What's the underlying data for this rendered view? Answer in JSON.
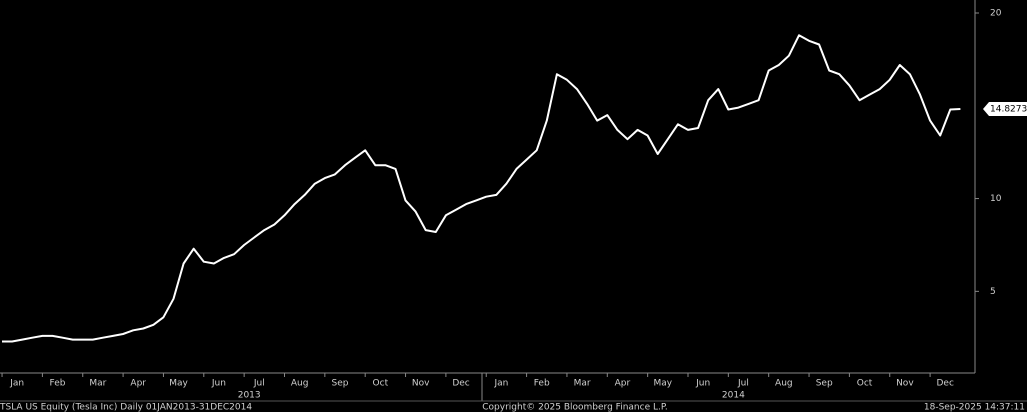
{
  "chart_data": {
    "type": "line",
    "categories": [
      null,
      "Jan",
      null,
      null,
      null,
      "Feb",
      null,
      null,
      null,
      "Mar",
      null,
      null,
      null,
      "Apr",
      null,
      null,
      null,
      "May",
      null,
      null,
      null,
      "Jun",
      null,
      null,
      null,
      "Jul",
      null,
      null,
      null,
      "Aug",
      null,
      null,
      null,
      "Sep",
      null,
      null,
      null,
      "Oct",
      null,
      null,
      null,
      "Nov",
      null,
      null,
      null,
      "Dec",
      null,
      null,
      null,
      "Jan",
      null,
      null,
      null,
      "Feb",
      null,
      null,
      null,
      "Mar",
      null,
      null,
      null,
      "Apr",
      null,
      null,
      null,
      "May",
      null,
      null,
      null,
      "Jun",
      null,
      null,
      null,
      "Jul",
      null,
      null,
      null,
      "Aug",
      null,
      null,
      null,
      "Sep",
      null,
      null,
      null,
      "Oct",
      null,
      null,
      null,
      "Nov",
      null,
      null,
      null,
      "Dec",
      null,
      null
    ],
    "years": [
      "2013",
      "2014"
    ],
    "series": [
      {
        "name": "TSLA US Equity",
        "color": "#ffffff",
        "values": [
          2.3,
          2.3,
          2.4,
          2.5,
          2.6,
          2.6,
          2.5,
          2.4,
          2.4,
          2.4,
          2.5,
          2.6,
          2.7,
          2.9,
          3.0,
          3.2,
          3.6,
          4.6,
          6.5,
          7.3,
          6.6,
          6.5,
          6.8,
          7.0,
          7.5,
          7.9,
          8.3,
          8.6,
          9.1,
          9.7,
          10.2,
          10.8,
          11.1,
          11.3,
          11.8,
          12.2,
          12.6,
          11.8,
          11.8,
          11.6,
          9.9,
          9.3,
          8.3,
          8.2,
          9.1,
          9.4,
          9.7,
          9.9,
          10.1,
          10.2,
          10.8,
          11.6,
          12.1,
          12.6,
          14.2,
          16.7,
          16.4,
          15.9,
          15.1,
          14.2,
          14.5,
          13.7,
          13.2,
          13.7,
          13.4,
          12.4,
          13.2,
          14.0,
          13.7,
          13.8,
          15.3,
          15.9,
          14.8,
          14.9,
          15.1,
          15.3,
          16.9,
          17.2,
          17.7,
          18.8,
          18.5,
          18.3,
          16.9,
          16.7,
          16.1,
          15.3,
          15.6,
          15.9,
          16.4,
          17.2,
          16.7,
          15.6,
          14.2,
          13.4,
          14.8,
          14.8273
        ]
      }
    ],
    "last_value": 14.8273,
    "ylim": [
      0.6,
      20.7
    ],
    "yticks": [
      5,
      10,
      20
    ],
    "footer_left": "TSLA US Equity (Tesla Inc)  Daily 01JAN2013-31DEC2014",
    "footer_center": "Copyright© 2025 Bloomberg Finance L.P.",
    "footer_right": "18-Sep-2025 14:37:11"
  }
}
